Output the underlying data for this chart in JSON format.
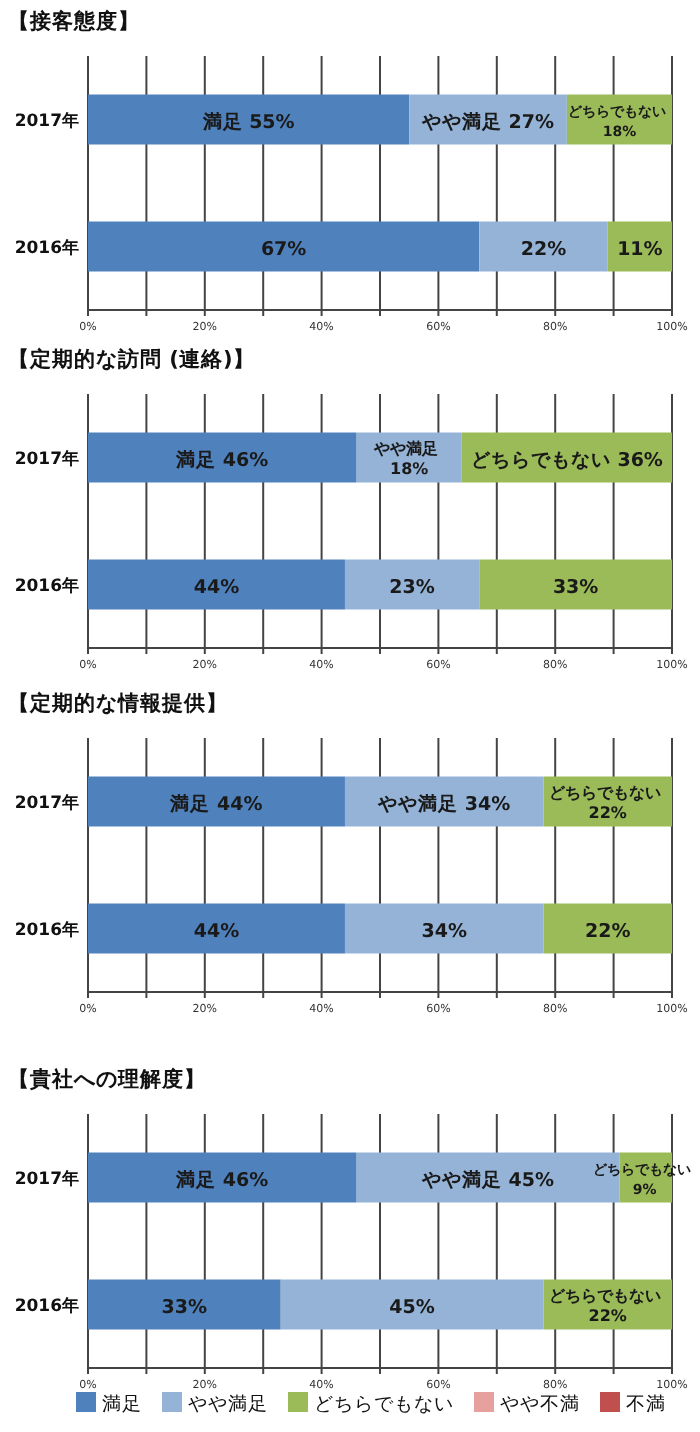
{
  "chart_data": [
    {
      "type": "bar",
      "title": "【接客態度】",
      "categories": [
        "2017年",
        "2016年"
      ],
      "orientation": "horizontal",
      "stacked": true,
      "xlim": [
        0,
        100
      ],
      "grid": "x",
      "legend": false,
      "xticks": [
        {
          "value": 0,
          "label": "0%"
        },
        {
          "value": 10,
          "label": null
        },
        {
          "value": 20,
          "label": "20%"
        },
        {
          "value": 30,
          "label": null
        },
        {
          "value": 40,
          "label": "40%"
        },
        {
          "value": 50,
          "label": null
        },
        {
          "value": 60,
          "label": "60%"
        },
        {
          "value": 70,
          "label": null
        },
        {
          "value": 80,
          "label": "80%"
        },
        {
          "value": 90,
          "label": null
        },
        {
          "value": 100,
          "label": "100%"
        }
      ],
      "series": [
        {
          "color": "#4f81bd",
          "values": [
            55,
            67
          ],
          "value_labels": [
            "満足 55%",
            "67%"
          ]
        },
        {
          "color": "#95b3d7",
          "values": [
            27,
            22
          ],
          "value_labels": [
            "やや満足 27%",
            "22%"
          ]
        },
        {
          "color": "#9bbb59",
          "values": [
            18,
            11
          ],
          "value_labels": [
            "どちらでもない 18%",
            "11%"
          ]
        }
      ]
    },
    {
      "type": "bar",
      "title": "【定期的な訪問 (連絡)】",
      "categories": [
        "2017年",
        "2016年"
      ],
      "orientation": "horizontal",
      "stacked": true,
      "xlim": [
        0,
        100
      ],
      "grid": "x",
      "legend": false,
      "xticks": [
        {
          "value": 0,
          "label": "0%"
        },
        {
          "value": 10,
          "label": null
        },
        {
          "value": 20,
          "label": "20%"
        },
        {
          "value": 30,
          "label": null
        },
        {
          "value": 40,
          "label": "40%"
        },
        {
          "value": 50,
          "label": null
        },
        {
          "value": 60,
          "label": "60%"
        },
        {
          "value": 70,
          "label": null
        },
        {
          "value": 80,
          "label": "80%"
        },
        {
          "value": 90,
          "label": null
        },
        {
          "value": 100,
          "label": "100%"
        }
      ],
      "series": [
        {
          "color": "#4f81bd",
          "values": [
            46,
            44
          ],
          "value_labels": [
            "満足 46%",
            "44%"
          ]
        },
        {
          "color": "#95b3d7",
          "values": [
            18,
            23
          ],
          "value_labels": [
            "やや満足 18%",
            "23%"
          ]
        },
        {
          "color": "#9bbb59",
          "values": [
            36,
            33
          ],
          "value_labels": [
            "どちらでもない 36%",
            "33%"
          ]
        }
      ]
    },
    {
      "type": "bar",
      "title": "【定期的な情報提供】",
      "categories": [
        "2017年",
        "2016年"
      ],
      "orientation": "horizontal",
      "stacked": true,
      "xlim": [
        0,
        100
      ],
      "grid": "x",
      "legend": false,
      "xticks": [
        {
          "value": 0,
          "label": "0%"
        },
        {
          "value": 10,
          "label": null
        },
        {
          "value": 20,
          "label": "20%"
        },
        {
          "value": 30,
          "label": null
        },
        {
          "value": 40,
          "label": "40%"
        },
        {
          "value": 50,
          "label": null
        },
        {
          "value": 60,
          "label": "60%"
        },
        {
          "value": 70,
          "label": null
        },
        {
          "value": 80,
          "label": "80%"
        },
        {
          "value": 90,
          "label": null
        },
        {
          "value": 100,
          "label": "100%"
        }
      ],
      "series": [
        {
          "color": "#4f81bd",
          "values": [
            44,
            44
          ],
          "value_labels": [
            "満足 44%",
            "44%"
          ]
        },
        {
          "color": "#95b3d7",
          "values": [
            34,
            34
          ],
          "value_labels": [
            "やや満足 34%",
            "34%"
          ]
        },
        {
          "color": "#9bbb59",
          "values": [
            22,
            22
          ],
          "value_labels": [
            "どちらでもない 22%",
            "22%"
          ]
        }
      ]
    },
    {
      "type": "bar",
      "title": "【貴社への理解度】",
      "categories": [
        "2017年",
        "2016年"
      ],
      "orientation": "horizontal",
      "stacked": true,
      "xlim": [
        0,
        100
      ],
      "grid": "x",
      "legend": "bottom",
      "xticks": [
        {
          "value": 0,
          "label": "0%"
        },
        {
          "value": 10,
          "label": null
        },
        {
          "value": 20,
          "label": "20%"
        },
        {
          "value": 30,
          "label": null
        },
        {
          "value": 40,
          "label": "40%"
        },
        {
          "value": 50,
          "label": null
        },
        {
          "value": 60,
          "label": "60%"
        },
        {
          "value": 70,
          "label": null
        },
        {
          "value": 80,
          "label": "80%"
        },
        {
          "value": 90,
          "label": null
        },
        {
          "value": 100,
          "label": "100%"
        }
      ],
      "series": [
        {
          "name": "満足",
          "color": "#4f81bd",
          "values": [
            46,
            33
          ],
          "value_labels": [
            "満足 46%",
            "33%"
          ]
        },
        {
          "name": "やや満足",
          "color": "#95b3d7",
          "values": [
            45,
            45
          ],
          "value_labels": [
            "やや満足 45%",
            "45%"
          ]
        },
        {
          "name": "どちらでもない",
          "color": "#9bbb59",
          "values": [
            9,
            22
          ],
          "value_labels": [
            "どちらでもない 9%",
            "どちらでもない 22%"
          ]
        },
        {
          "name": "やや不満",
          "color": "#e6a09e",
          "values": [
            null,
            null
          ]
        },
        {
          "name": "不満",
          "color": "#c0504d",
          "values": [
            null,
            null
          ]
        }
      ]
    }
  ]
}
